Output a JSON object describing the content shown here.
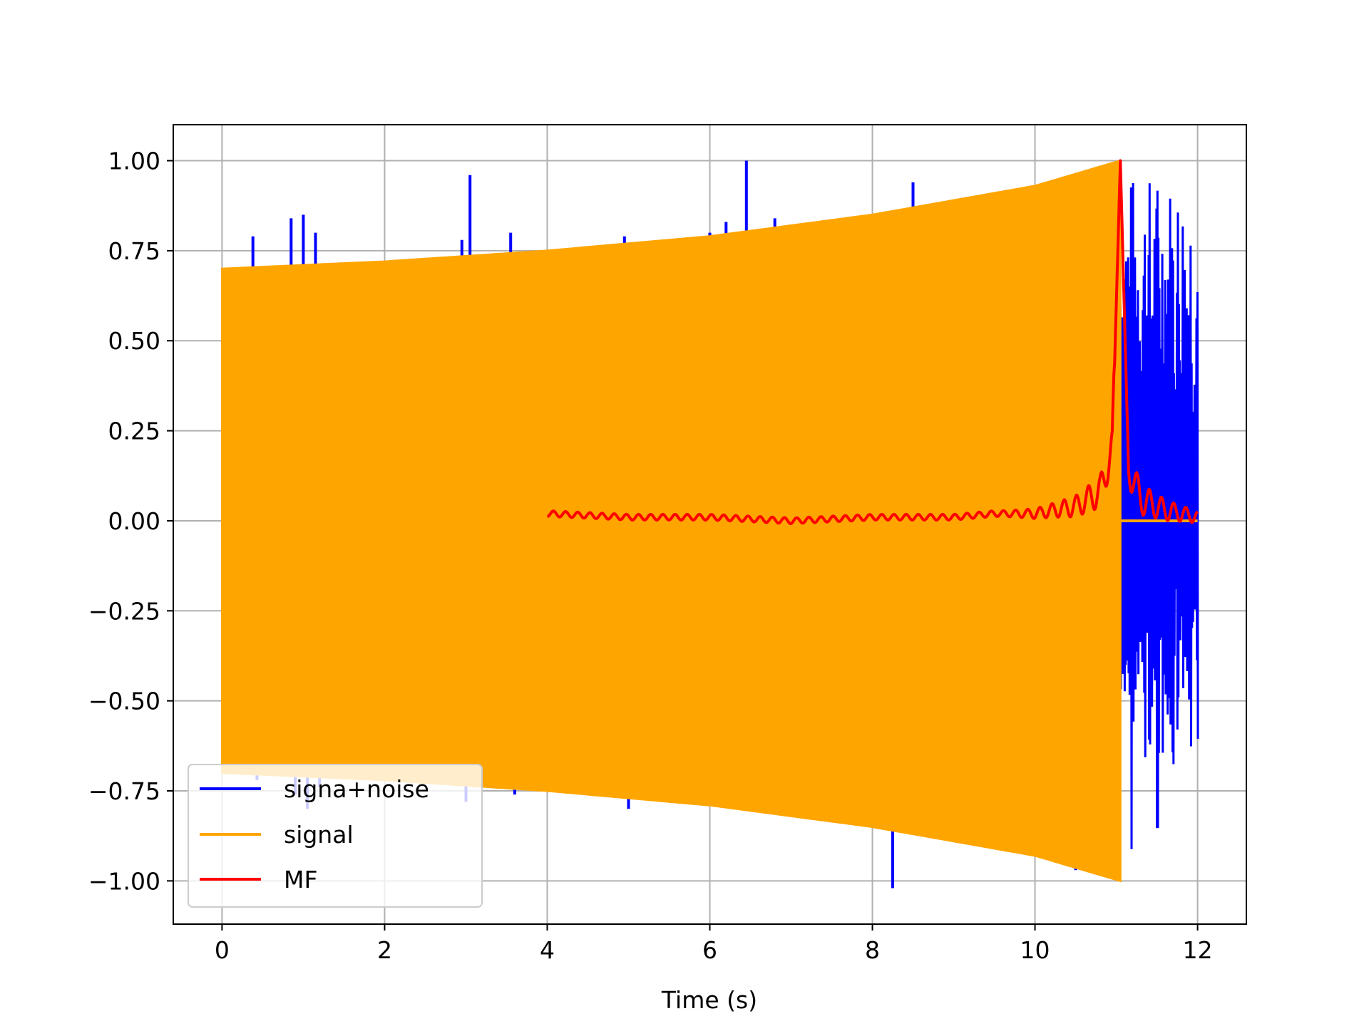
{
  "chart_data": {
    "type": "line",
    "title": "",
    "xlabel": "Time (s)",
    "ylabel": "",
    "xlim": [
      -0.6,
      12.6
    ],
    "ylim": [
      -1.12,
      1.1
    ],
    "xticks": [
      0,
      2,
      4,
      6,
      8,
      10,
      12
    ],
    "xtick_labels": [
      "0",
      "2",
      "4",
      "6",
      "8",
      "10",
      "12"
    ],
    "yticks": [
      1.0,
      0.75,
      0.5,
      0.25,
      0.0,
      -0.25,
      -0.5,
      -0.75,
      -1.0
    ],
    "ytick_labels": [
      "1.00",
      "0.75",
      "0.50",
      "0.25",
      "0.00",
      "−0.25",
      "−0.50",
      "−0.75",
      "−1.00"
    ],
    "grid": true,
    "legend_position": "lower-left",
    "colors": {
      "signal_noise": "#0000ff",
      "signal": "#ffa500",
      "mf": "#ff0000",
      "grid": "#b0b0b0"
    },
    "series": [
      {
        "name": "signa+noise",
        "description_points": {
          "time_range": [
            0,
            12
          ],
          "spike_times": [
            0.38,
            0.85,
            1.0,
            1.15,
            2.95,
            3.05,
            3.55,
            4.95,
            6.0,
            6.2,
            6.45,
            6.8,
            7.65,
            8.25,
            8.5,
            10.5
          ],
          "spike_values": [
            0.79,
            0.84,
            0.85,
            0.8,
            0.78,
            0.96,
            0.8,
            0.79,
            0.8,
            0.83,
            1.0,
            0.84,
            0.82,
            -1.02,
            0.94,
            -0.97
          ],
          "noise_burst_range": [
            11.05,
            12.0
          ],
          "noise_burst_amplitude": 0.97
        }
      },
      {
        "name": "signal",
        "envelope": {
          "time": [
            0,
            2,
            4,
            6,
            8,
            10,
            11.05
          ],
          "amplitude": [
            0.7,
            0.72,
            0.75,
            0.79,
            0.85,
            0.93,
            1.0
          ]
        }
      },
      {
        "name": "MF",
        "points": {
          "time": [
            4.0,
            5.0,
            6.0,
            7.0,
            8.0,
            9.0,
            9.5,
            10.0,
            10.5,
            10.8,
            10.95,
            11.05,
            11.15,
            11.3,
            11.6,
            12.0
          ],
          "value": [
            0.02,
            0.01,
            0.01,
            0.0,
            0.01,
            0.01,
            0.02,
            0.02,
            0.04,
            0.08,
            0.2,
            1.0,
            0.15,
            0.06,
            0.03,
            0.01
          ]
        }
      }
    ]
  }
}
